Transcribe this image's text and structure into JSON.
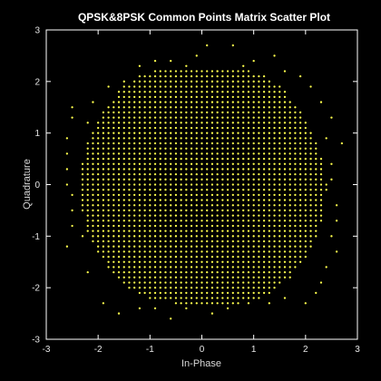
{
  "chart_data": {
    "type": "scatter",
    "title": "QPSK&8PSK Common Points Matrix Scatter Plot",
    "xlabel": "In-Phase",
    "ylabel": "Quadrature",
    "xlim": [
      -3,
      3
    ],
    "ylim": [
      -3,
      3
    ],
    "xticks": [
      -3,
      -2,
      -1,
      0,
      1,
      2,
      3
    ],
    "yticks": [
      -3,
      -2,
      -1,
      0,
      1,
      2,
      3
    ],
    "grid": false,
    "legend": false,
    "background_color": "#000000",
    "axes_color": "#ffffff",
    "point_color": "#ffff4d",
    "point_grid_spacing": 0.1,
    "series": [
      {
        "description": "dense cloud of constellation points on a 0.1 grid inside an irregular region",
        "region_radius_profile": [
          {
            "angle_deg": 0,
            "radius": 2.4
          },
          {
            "angle_deg": 30,
            "radius": 2.35
          },
          {
            "angle_deg": 60,
            "radius": 2.45
          },
          {
            "angle_deg": 90,
            "radius": 2.25
          },
          {
            "angle_deg": 120,
            "radius": 2.45
          },
          {
            "angle_deg": 150,
            "radius": 2.35
          },
          {
            "angle_deg": 180,
            "radius": 2.35
          },
          {
            "angle_deg": 210,
            "radius": 2.4
          },
          {
            "angle_deg": 240,
            "radius": 2.45
          },
          {
            "angle_deg": 270,
            "radius": 2.3
          },
          {
            "angle_deg": 300,
            "radius": 2.5
          },
          {
            "angle_deg": 330,
            "radius": 2.45
          }
        ],
        "outlier_points": [
          [
            -2.5,
            1.5
          ],
          [
            -2.5,
            1.3
          ],
          [
            -2.6,
            0.9
          ],
          [
            -2.6,
            0.6
          ],
          [
            -2.6,
            0.3
          ],
          [
            -2.6,
            0.0
          ],
          [
            -2.5,
            -0.2
          ],
          [
            -2.5,
            -0.5
          ],
          [
            -2.5,
            -0.8
          ],
          [
            -2.6,
            -1.2
          ],
          [
            -2.2,
            -1.7
          ],
          [
            -1.9,
            -2.3
          ],
          [
            -1.6,
            -2.5
          ],
          [
            -1.2,
            -2.4
          ],
          [
            -0.9,
            -2.4
          ],
          [
            -0.6,
            -2.6
          ],
          [
            -0.3,
            -2.4
          ],
          [
            0.2,
            -2.5
          ],
          [
            0.5,
            -2.4
          ],
          [
            0.9,
            -2.3
          ],
          [
            1.3,
            -2.3
          ],
          [
            1.6,
            -2.2
          ],
          [
            2.0,
            -2.3
          ],
          [
            2.3,
            -1.9
          ],
          [
            2.4,
            -1.6
          ],
          [
            2.6,
            -1.3
          ],
          [
            2.5,
            -1.0
          ],
          [
            2.6,
            -0.7
          ],
          [
            2.6,
            -0.4
          ],
          [
            2.5,
            0.1
          ],
          [
            2.7,
            0.8
          ],
          [
            2.5,
            0.4
          ],
          [
            2.4,
            0.9
          ],
          [
            2.5,
            1.3
          ],
          [
            2.3,
            1.6
          ],
          [
            2.1,
            1.9
          ],
          [
            1.9,
            2.1
          ],
          [
            1.6,
            2.2
          ],
          [
            1.4,
            2.5
          ],
          [
            1.0,
            2.4
          ],
          [
            0.8,
            2.3
          ],
          [
            0.3,
            2.2
          ],
          [
            -0.1,
            2.5
          ],
          [
            -0.3,
            2.3
          ],
          [
            -0.6,
            2.4
          ],
          [
            -0.9,
            2.4
          ],
          [
            -1.2,
            2.3
          ],
          [
            -1.5,
            2.0
          ],
          [
            -1.8,
            1.9
          ],
          [
            -2.1,
            1.6
          ],
          [
            -2.2,
            1.2
          ],
          [
            0.1,
            2.7
          ],
          [
            0.6,
            2.7
          ],
          [
            -2.3,
            -1.0
          ],
          [
            2.2,
            -2.1
          ]
        ]
      }
    ]
  }
}
